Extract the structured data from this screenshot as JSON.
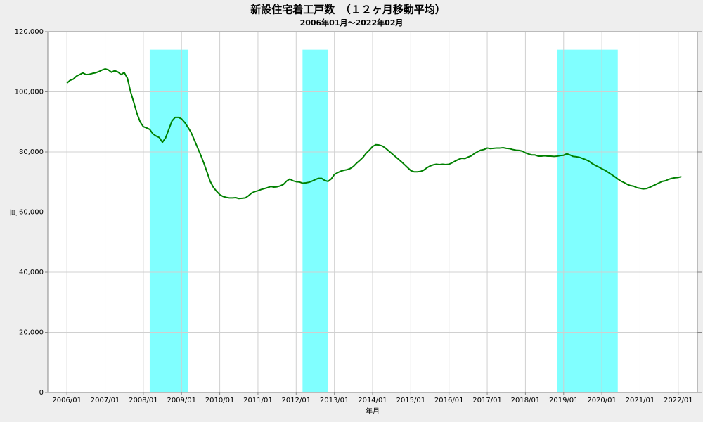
{
  "chart_data": {
    "type": "line",
    "title": "新設住宅着工戸数　（１２ヶ月移動平均）",
    "subtitle": "2006年01月～2022年02月",
    "x_label": "年月",
    "y_label": "戸",
    "x": [
      "2006/01",
      "2006/02",
      "2006/03",
      "2006/04",
      "2006/05",
      "2006/06",
      "2006/07",
      "2006/08",
      "2006/09",
      "2006/10",
      "2006/11",
      "2006/12",
      "2007/01",
      "2007/02",
      "2007/03",
      "2007/04",
      "2007/05",
      "2007/06",
      "2007/07",
      "2007/08",
      "2007/09",
      "2007/10",
      "2007/11",
      "2007/12",
      "2008/01",
      "2008/02",
      "2008/03",
      "2008/04",
      "2008/05",
      "2008/06",
      "2008/07",
      "2008/08",
      "2008/09",
      "2008/10",
      "2008/11",
      "2008/12",
      "2009/01",
      "2009/02",
      "2009/03",
      "2009/04",
      "2009/05",
      "2009/06",
      "2009/07",
      "2009/08",
      "2009/09",
      "2009/10",
      "2009/11",
      "2009/12",
      "2010/01",
      "2010/02",
      "2010/03",
      "2010/04",
      "2010/05",
      "2010/06",
      "2010/07",
      "2010/08",
      "2010/09",
      "2010/10",
      "2010/11",
      "2010/12",
      "2011/01",
      "2011/02",
      "2011/03",
      "2011/04",
      "2011/05",
      "2011/06",
      "2011/07",
      "2011/08",
      "2011/09",
      "2011/10",
      "2011/11",
      "2011/12",
      "2012/01",
      "2012/02",
      "2012/03",
      "2012/04",
      "2012/05",
      "2012/06",
      "2012/07",
      "2012/08",
      "2012/09",
      "2012/10",
      "2012/11",
      "2012/12",
      "2013/01",
      "2013/02",
      "2013/03",
      "2013/04",
      "2013/05",
      "2013/06",
      "2013/07",
      "2013/08",
      "2013/09",
      "2013/10",
      "2013/11",
      "2013/12",
      "2014/01",
      "2014/02",
      "2014/03",
      "2014/04",
      "2014/05",
      "2014/06",
      "2014/07",
      "2014/08",
      "2014/09",
      "2014/10",
      "2014/11",
      "2014/12",
      "2015/01",
      "2015/02",
      "2015/03",
      "2015/04",
      "2015/05",
      "2015/06",
      "2015/07",
      "2015/08",
      "2015/09",
      "2015/10",
      "2015/11",
      "2015/12",
      "2016/01",
      "2016/02",
      "2016/03",
      "2016/04",
      "2016/05",
      "2016/06",
      "2016/07",
      "2016/08",
      "2016/09",
      "2016/10",
      "2016/11",
      "2016/12",
      "2017/01",
      "2017/02",
      "2017/03",
      "2017/04",
      "2017/05",
      "2017/06",
      "2017/07",
      "2017/08",
      "2017/09",
      "2017/10",
      "2017/11",
      "2017/12",
      "2018/01",
      "2018/02",
      "2018/03",
      "2018/04",
      "2018/05",
      "2018/06",
      "2018/07",
      "2018/08",
      "2018/09",
      "2018/10",
      "2018/11",
      "2018/12",
      "2019/01",
      "2019/02",
      "2019/03",
      "2019/04",
      "2019/05",
      "2019/06",
      "2019/07",
      "2019/08",
      "2019/09",
      "2019/10",
      "2019/11",
      "2019/12",
      "2020/01",
      "2020/02",
      "2020/03",
      "2020/04",
      "2020/05",
      "2020/06",
      "2020/07",
      "2020/08",
      "2020/09",
      "2020/10",
      "2020/11",
      "2020/12",
      "2021/01",
      "2021/02",
      "2021/03",
      "2021/04",
      "2021/05",
      "2021/06",
      "2021/07",
      "2021/08",
      "2021/09",
      "2021/10",
      "2021/11",
      "2021/12",
      "2022/01",
      "2022/02"
    ],
    "series": [
      {
        "color": "#008000",
        "values": [
          102900,
          103800,
          104200,
          105200,
          105700,
          106300,
          105700,
          105800,
          106100,
          106300,
          106700,
          107200,
          107600,
          107300,
          106500,
          107000,
          106600,
          105700,
          106400,
          104500,
          100000,
          96500,
          92800,
          90000,
          88400,
          88000,
          87500,
          86000,
          85300,
          84800,
          83200,
          84700,
          87500,
          90300,
          91500,
          91500,
          91000,
          89800,
          88200,
          86500,
          84000,
          81500,
          79000,
          76300,
          73300,
          70200,
          68200,
          66900,
          65800,
          65200,
          64900,
          64700,
          64700,
          64800,
          64500,
          64600,
          64700,
          65400,
          66300,
          66800,
          67100,
          67500,
          67800,
          68100,
          68500,
          68300,
          68400,
          68700,
          69200,
          70300,
          71000,
          70400,
          70100,
          70000,
          69600,
          69700,
          69900,
          70300,
          70800,
          71200,
          71200,
          70500,
          70200,
          71000,
          72500,
          73100,
          73600,
          73900,
          74100,
          74500,
          75200,
          76300,
          77200,
          78200,
          79600,
          80600,
          81800,
          82400,
          82300,
          82000,
          81300,
          80400,
          79500,
          78600,
          77700,
          76800,
          75800,
          74800,
          73800,
          73400,
          73400,
          73500,
          73900,
          74700,
          75300,
          75700,
          75900,
          75800,
          75900,
          75800,
          75900,
          76400,
          77000,
          77500,
          77900,
          77800,
          78300,
          78700,
          79500,
          80100,
          80600,
          80800,
          81300,
          81100,
          81200,
          81300,
          81300,
          81400,
          81200,
          81100,
          80800,
          80600,
          80500,
          80300,
          79700,
          79300,
          79000,
          79000,
          78600,
          78600,
          78700,
          78600,
          78600,
          78500,
          78600,
          78800,
          78900,
          79400,
          79000,
          78500,
          78400,
          78200,
          77800,
          77400,
          76900,
          76100,
          75500,
          75000,
          74400,
          73900,
          73200,
          72500,
          71800,
          71000,
          70300,
          69800,
          69200,
          68800,
          68600,
          68100,
          67900,
          67700,
          67800,
          68200,
          68700,
          69200,
          69700,
          70200,
          70400,
          70900,
          71200,
          71400,
          71500,
          71800
        ]
      }
    ],
    "shaded_periods": [
      [
        "2008/03",
        "2009/03"
      ],
      [
        "2012/03",
        "2012/11"
      ],
      [
        "2018/11",
        "2020/06"
      ]
    ],
    "shade_color": "#80ffff",
    "shade_top": 114000,
    "xlim": [
      "2005/07",
      "2022/07"
    ],
    "xticks": [
      "2006/01",
      "2007/01",
      "2008/01",
      "2009/01",
      "2010/01",
      "2011/01",
      "2012/01",
      "2013/01",
      "2014/01",
      "2015/01",
      "2016/01",
      "2017/01",
      "2018/01",
      "2019/01",
      "2020/01",
      "2021/01",
      "2022/01"
    ],
    "ylim": [
      0,
      120000
    ],
    "yticks": [
      0,
      {
        "value": 20000,
        "label": "20,000"
      },
      {
        "value": 40000,
        "label": "40,000"
      },
      {
        "value": 60000,
        "label": "60,000"
      },
      {
        "value": 80000,
        "label": "80,000"
      },
      {
        "value": 100000,
        "label": "100,000"
      },
      {
        "value": 120000,
        "label": "120,000"
      }
    ],
    "grid": true
  }
}
